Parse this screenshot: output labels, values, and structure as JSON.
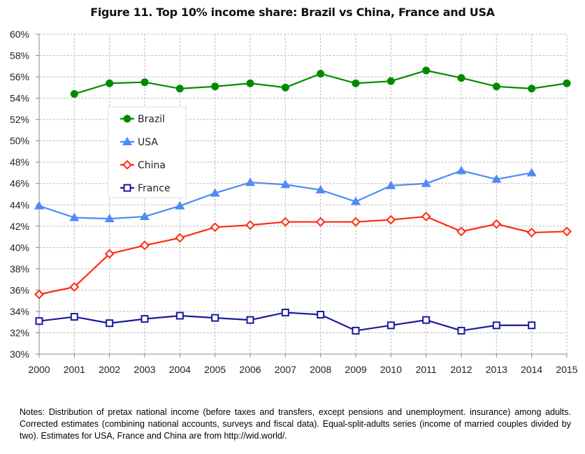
{
  "chart_data": {
    "type": "line",
    "title": "Figure 11. Top 10% income share: Brazil vs China, France and USA",
    "xlabel": "",
    "ylabel": "",
    "x": [
      2000,
      2001,
      2002,
      2003,
      2004,
      2005,
      2006,
      2007,
      2008,
      2009,
      2010,
      2011,
      2012,
      2013,
      2014,
      2015
    ],
    "y_ticks": [
      "30%",
      "32%",
      "34%",
      "36%",
      "38%",
      "40%",
      "42%",
      "44%",
      "46%",
      "48%",
      "50%",
      "52%",
      "54%",
      "56%",
      "58%",
      "60%"
    ],
    "ylim": [
      30,
      60
    ],
    "grid": true,
    "legend_position": "upper-left inside",
    "series": [
      {
        "name": "Brazil",
        "color": "#008a00",
        "marker": "filled-circle",
        "values": [
          null,
          54.4,
          55.4,
          55.5,
          54.9,
          55.1,
          55.4,
          55.0,
          56.3,
          55.4,
          55.6,
          56.6,
          55.9,
          55.1,
          54.9,
          55.4
        ]
      },
      {
        "name": "USA",
        "color": "#4f8af5",
        "marker": "filled-triangle",
        "values": [
          43.9,
          42.8,
          42.7,
          42.9,
          43.9,
          45.1,
          46.1,
          45.9,
          45.4,
          44.3,
          45.8,
          46.0,
          47.2,
          46.4,
          47.0,
          null
        ]
      },
      {
        "name": "China",
        "color": "#ff2a10",
        "marker": "open-diamond",
        "values": [
          35.6,
          36.3,
          39.4,
          40.2,
          40.9,
          41.9,
          42.1,
          42.4,
          42.4,
          42.4,
          42.6,
          42.9,
          41.5,
          42.2,
          41.4,
          41.5
        ]
      },
      {
        "name": "France",
        "color": "#1a1a9a",
        "marker": "open-square",
        "values": [
          33.1,
          33.5,
          32.9,
          33.3,
          33.6,
          33.4,
          33.2,
          33.9,
          33.7,
          32.2,
          32.7,
          33.2,
          32.2,
          32.7,
          32.7,
          null
        ]
      }
    ]
  },
  "notes": "Notes: Distribution of pretax national income (before taxes and transfers, except pensions and unemployment. insurance) among adults. Corrected estimates (combining national accounts, surveys and fiscal data). Equal-split-adults series (income of married couples divided by two). Estimates for USA, France and China are from http://wid.world/."
}
